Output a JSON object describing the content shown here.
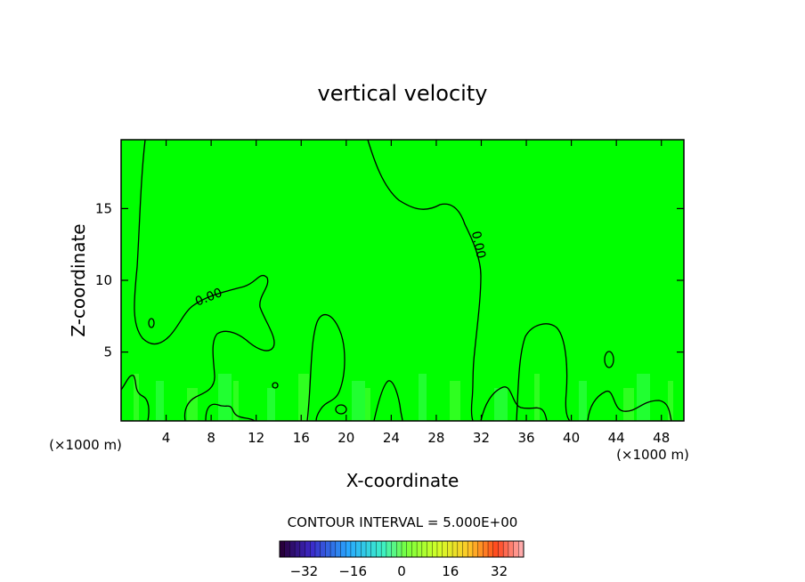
{
  "chart_data": {
    "type": "heatmap",
    "title": "vertical velocity",
    "xlabel": "X-coordinate",
    "ylabel": "Z-coordinate",
    "x_unit": "(×1000 m)",
    "y_unit": "(×1000 m)",
    "xlim": [
      0,
      50
    ],
    "ylim": [
      0.2,
      19.8
    ],
    "x_ticks": [
      4,
      8,
      12,
      16,
      20,
      24,
      28,
      32,
      36,
      40,
      44,
      48
    ],
    "y_ticks": [
      5,
      10,
      15
    ],
    "field_color": "#00ff00",
    "contour_label": "0.00",
    "contour_interval_text": "CONTOUR INTERVAL = 5.000E+00",
    "colorbar": {
      "min": -40,
      "max": 40,
      "ticks": [
        -32,
        -16,
        0,
        16,
        32
      ]
    },
    "grid": false,
    "legend": "colorbar-bottom"
  }
}
